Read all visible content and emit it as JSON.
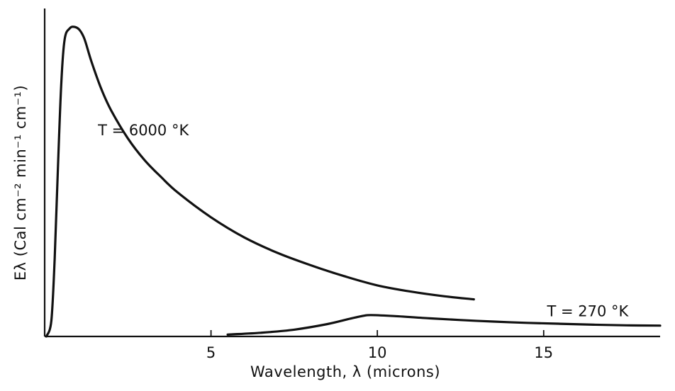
{
  "chart_data": {
    "type": "line",
    "title": "",
    "xlabel": "Wavelength, λ (microns)",
    "ylabel": "Eλ (Cal cm⁻² min⁻¹ cm⁻¹)",
    "xlim": [
      0,
      18.5
    ],
    "ylim": [
      0,
      100
    ],
    "x_ticks": [
      "5",
      "10",
      "15"
    ],
    "x_tick_values": [
      5,
      10,
      15
    ],
    "grid": false,
    "legend": "none",
    "series": [
      {
        "name": "T = 6000 °K",
        "points": [
          [
            0.05,
            0
          ],
          [
            0.2,
            5
          ],
          [
            0.3,
            25
          ],
          [
            0.4,
            55
          ],
          [
            0.5,
            82
          ],
          [
            0.6,
            96
          ],
          [
            0.75,
            99.5
          ],
          [
            0.9,
            100
          ],
          [
            1.05,
            99
          ],
          [
            1.2,
            96
          ],
          [
            1.4,
            89
          ],
          [
            1.7,
            80
          ],
          [
            2.0,
            73
          ],
          [
            2.5,
            64
          ],
          [
            3.0,
            57
          ],
          [
            3.5,
            51.5
          ],
          [
            4.0,
            46.5
          ],
          [
            5.0,
            38.5
          ],
          [
            6.0,
            32
          ],
          [
            7.0,
            27
          ],
          [
            8.0,
            23
          ],
          [
            9.0,
            19.5
          ],
          [
            10.0,
            16.5
          ],
          [
            11.0,
            14.5
          ],
          [
            12.0,
            13
          ],
          [
            12.9,
            12
          ]
        ]
      },
      {
        "name": "T = 270 °K",
        "points": [
          [
            5.5,
            0.6
          ],
          [
            6.5,
            1.2
          ],
          [
            7.5,
            2.2
          ],
          [
            8.5,
            4.0
          ],
          [
            9.2,
            5.8
          ],
          [
            9.6,
            6.7
          ],
          [
            9.8,
            6.9
          ],
          [
            10.5,
            6.6
          ],
          [
            11.5,
            5.9
          ],
          [
            12.5,
            5.3
          ],
          [
            13.5,
            4.8
          ],
          [
            14.5,
            4.4
          ],
          [
            15.5,
            4.1
          ],
          [
            16.5,
            3.8
          ],
          [
            17.5,
            3.6
          ],
          [
            18.5,
            3.5
          ]
        ]
      }
    ],
    "annotations": [
      {
        "series": "T = 6000 °K",
        "text": "T = 6000 °K",
        "x": 1.6,
        "y": 65
      },
      {
        "series": "T = 270 °K",
        "text": "T = 270 °K",
        "x": 15.1,
        "y": 6.5
      }
    ]
  }
}
